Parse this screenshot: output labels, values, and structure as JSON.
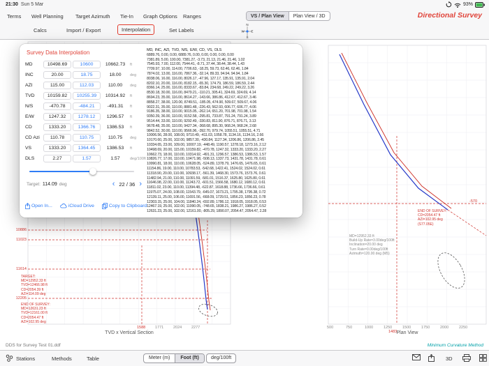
{
  "status_bar": {
    "time": "21:30",
    "date": "Sun 5 Mar",
    "battery": "93%"
  },
  "menu_bar": {
    "items": [
      "Terms",
      "Well Planning",
      "Target Azimuth",
      "Tie-In",
      "Graph Options",
      "Ranges"
    ],
    "view_segments": [
      "VS / Plan View",
      "Plan View / 3D"
    ],
    "selected_segment": "VS / Plan View",
    "app_title": "Directional Survey"
  },
  "tool_bar": {
    "items": [
      "Calcs",
      "Import / Export",
      "Interpolation",
      "Set Labels"
    ],
    "highlighted_item": "Interpolation",
    "compass": {
      "north": "N",
      "south": "S",
      "east": "E",
      "west": "W"
    }
  },
  "popover": {
    "title": "Survey Data Interpolation",
    "fields": [
      {
        "label": "MD",
        "prev": "10498.69",
        "interp": "10600",
        "next": "10662.73",
        "unit": "ft"
      },
      {
        "label": "INC",
        "prev": "20.00",
        "interp": "18.75",
        "next": "18.00",
        "unit": "deg"
      },
      {
        "label": "AZI",
        "prev": "115.00",
        "interp": "112.03",
        "next": "110.00",
        "unit": "deg"
      },
      {
        "label": "TVD",
        "prev": "10159.82",
        "interp": "10255.39",
        "next": "10314.92",
        "unit": "ft"
      },
      {
        "label": "N/S",
        "prev": "-470.78",
        "interp": "-484.21",
        "next": "-491.31",
        "unit": "ft"
      },
      {
        "label": "E/W",
        "prev": "1247.32",
        "interp": "1278.12",
        "next": "1296.57",
        "unit": "ft"
      },
      {
        "label": "CD",
        "prev": "1333.20",
        "interp": "1366.76",
        "next": "1386.53",
        "unit": "ft"
      },
      {
        "label": "CD Azi",
        "prev": "110.78",
        "interp": "110.75",
        "next": "110.75",
        "unit": "deg"
      },
      {
        "label": "VS",
        "prev": "1333.20",
        "interp": "1364.45",
        "next": "1386.53",
        "unit": "ft"
      },
      {
        "label": "DLS",
        "prev": "2.27",
        "interp": "1.57",
        "next": "1.57",
        "unit": "deg/100ft"
      }
    ],
    "target": {
      "label": "Target:",
      "value": "114.09",
      "unit": "deg"
    },
    "stepper": {
      "display": "22 / 36",
      "current": 22,
      "total": 36,
      "prev_icon": "‹",
      "next_icon": "›"
    },
    "actions": [
      "Open In...",
      "iCloud Drive",
      "Copy to Clipboard"
    ]
  },
  "table": {
    "headers": [
      "MD",
      "INC",
      "AZI",
      "TVD",
      "N/S",
      "E/W",
      "CD",
      "VS",
      "DLS"
    ],
    "rows": [
      [
        "6889.76",
        "0.00",
        "0.00",
        "6889.76",
        "0.00",
        "0.00",
        "0.00",
        "0.00",
        "0.00"
      ],
      [
        "7381.89",
        "5.00",
        "100.00",
        "7381.27",
        "-3.73",
        "21.13",
        "21.46",
        "21.46",
        "1.02"
      ],
      [
        "7545.93",
        "7.00",
        "112.00",
        "7544.41",
        "-8.71",
        "37.44",
        "38.44",
        "38.44",
        "1.43"
      ],
      [
        "7709.97",
        "10.00",
        "114.00",
        "7706.63",
        "-18.25",
        "59.73",
        "62.46",
        "62.46",
        "1.84"
      ],
      [
        "7874.02",
        "13.00",
        "116.00",
        "7867.36",
        "-32.14",
        "89.33",
        "94.94",
        "94.94",
        "1.84"
      ],
      [
        "8038.06",
        "16.00",
        "116.00",
        "8026.17",
        "-47.96",
        "127.17",
        "135.91",
        "135.91",
        "2.04"
      ],
      [
        "8202.10",
        "20.00",
        "116.00",
        "8182.15",
        "-65.30",
        "174.79",
        "186.59",
        "186.59",
        "2.44"
      ],
      [
        "8366.14",
        "25.00",
        "116.00",
        "8333.67",
        "-83.84",
        "234.68",
        "249.22",
        "249.22",
        "3.26"
      ],
      [
        "8530.18",
        "30.00",
        "116.00",
        "8479.21",
        "-110.21",
        "305.41",
        "324.69",
        "324.69",
        "4.14"
      ],
      [
        "8694.23",
        "35.00",
        "116.00",
        "8614.27",
        "-143.66",
        "386.86",
        "412.67",
        "412.67",
        "3.46"
      ],
      [
        "8858.27",
        "38.00",
        "120.00",
        "8749.51",
        "-185.05",
        "474.90",
        "509.67",
        "509.67",
        "4.06"
      ],
      [
        "9022.31",
        "35.00",
        "110.00",
        "8881.48",
        "-226.43",
        "562.93",
        "606.77",
        "606.77",
        "4.06"
      ],
      [
        "9186.35",
        "38.00",
        "110.00",
        "9015.05",
        "-262.14",
        "651.20",
        "701.98",
        "701.98",
        "1.54"
      ],
      [
        "9350.39",
        "36.00",
        "110.00",
        "9152.58",
        "-295.81",
        "733.87",
        "791.24",
        "791.24",
        "3.89"
      ],
      [
        "9514.44",
        "33.00",
        "110.00",
        "9292.49",
        "-330.83",
        "811.90",
        "876.71",
        "876.71",
        "3.13"
      ],
      [
        "9678.48",
        "35.00",
        "110.00",
        "9427.34",
        "-368.68",
        "895.30",
        "968.24",
        "968.24",
        "2.68"
      ],
      [
        "9842.52",
        "30.00",
        "110.00",
        "9566.96",
        "-392.70",
        "979.74",
        "1055.51",
        "1055.51",
        "4.71"
      ],
      [
        "10006.56",
        "28.00",
        "108.00",
        "9710.49",
        "-411.03",
        "1058.78",
        "1134.16",
        "1134.16",
        "2.66"
      ],
      [
        "10170.60",
        "25.00",
        "102.00",
        "9857.30",
        "-430.84",
        "1127.34",
        "1206.86",
        "1206.86",
        "2.45"
      ],
      [
        "10334.65",
        "23.00",
        "109.00",
        "10007.19",
        "-448.49",
        "1190.57",
        "1278.18",
        "1273.16",
        "2.12"
      ],
      [
        "10498.69",
        "20.00",
        "115.00",
        "10159.82",
        "-470.78",
        "1247.32",
        "1333.20",
        "1333.20",
        "2.27"
      ],
      [
        "10662.73",
        "18.00",
        "110.00",
        "10314.92",
        "-491.31",
        "1296.57",
        "1386.53",
        "1386.53",
        "1.57"
      ],
      [
        "10826.77",
        "17.00",
        "110.00",
        "10471.98",
        "-508.13",
        "1337.73",
        "1431.78",
        "1431.78",
        "0.61"
      ],
      [
        "10990.81",
        "18.00",
        "110.00",
        "10628.05",
        "-524.89",
        "1378.79",
        "1476.65",
        "1476.65",
        "0.61"
      ],
      [
        "11154.86",
        "19.00",
        "110.00",
        "10783.53",
        "-542.68",
        "1422.41",
        "1524.02",
        "1524.02",
        "0.61"
      ],
      [
        "11318.90",
        "20.00",
        "110.00",
        "10938.17",
        "-561.39",
        "1468.30",
        "1573.76",
        "1573.76",
        "0.61"
      ],
      [
        "11482.94",
        "21.00",
        "110.00",
        "11091.59",
        "-581.01",
        "1516.37",
        "1625.80",
        "1625.80",
        "0.61"
      ],
      [
        "11646.98",
        "22.00",
        "110.00",
        "11243.72",
        "-601.51",
        "1566.58",
        "1680.12",
        "1680.12",
        "0.61"
      ],
      [
        "11811.02",
        "23.00",
        "110.00",
        "11394.48",
        "-622.87",
        "1618.88",
        "1736.66",
        "1736.66",
        "0.61"
      ],
      [
        "11975.07",
        "24.00",
        "108.00",
        "11543.79",
        "-645.07",
        "1673.21",
        "1795.38",
        "1795.38",
        "0.72"
      ],
      [
        "12139.11",
        "25.00",
        "106.00",
        "11691.56",
        "-668.09",
        "1729.51",
        "1856.23",
        "1856.23",
        "0.78"
      ],
      [
        "12303.15",
        "25.00",
        "104.00",
        "11840.24",
        "-692.89",
        "1786.12",
        "1918.05",
        "1918.05",
        "0.53"
      ],
      [
        "12467.19",
        "25.00",
        "102.00",
        "11990.05",
        "-748.65",
        "1838.21",
        "1986.27",
        "1986.27",
        "0.52"
      ],
      [
        "12631.23",
        "25.00",
        "102.00",
        "12161.00",
        "-805.29",
        "1890.07",
        "2054.47",
        "2054.47",
        "2.28"
      ]
    ]
  },
  "charts": {
    "tvd_vs": {
      "title": "TVD x Vertical Section",
      "x_ticks": [
        "1588",
        "1771",
        "2024",
        "2277"
      ],
      "x_ticks_red": [
        true,
        false,
        false,
        false
      ],
      "y_ticks": [
        "10886",
        "11023",
        "11614",
        "12205"
      ]
    },
    "plan": {
      "title": "Plan View",
      "x_ticks": [
        "500",
        "750",
        "1000",
        "1250",
        "1500",
        "1750",
        "2000",
        "2250"
      ],
      "target_x_tick": "1483",
      "target_y_tick": "-570"
    },
    "annotations": {
      "buildup": [
        "MD=12952.33 ft",
        "Build-Up Rate=3.00deg/100ft",
        "Inclination=20.00 deg",
        "Turn Rate=0.00deg/100ft",
        "Azimuth=120.00 deg (M5)"
      ],
      "target": [
        "TARGET:",
        "MD=12952.33 ft",
        "TVD=12466.98 ft",
        "CD=2054.39 ft",
        "AZI=114.09 deg"
      ],
      "end_of_survey_left": [
        "END OF SURVEY:",
        "MD=12631.23 ft",
        "TVD=12161.00 ft",
        "CD=2054.47 ft",
        "AZI=102.95 deg"
      ],
      "end_of_survey_right": [
        "END OF SURVEY:",
        "CD=2054.47 ft",
        "AZI=102.95 deg",
        "(S77.05E)"
      ]
    },
    "colors": {
      "actual_line": "#2438c8",
      "planned_line": "#cc2d23",
      "target_lines": "#d0312c"
    }
  },
  "bottom_bar": {
    "items": [
      "Stations",
      "Methods",
      "Table"
    ],
    "unit_segments": [
      "Meter (m)",
      "Foot (ft)"
    ],
    "selected_unit": "Foot (ft)",
    "dls_unit_button": "deg/100ft",
    "three_d_button": "3D"
  },
  "footer": {
    "file_name": "DDS for Survey Test 01.ddf",
    "method": "Minimum Curvature Method"
  }
}
